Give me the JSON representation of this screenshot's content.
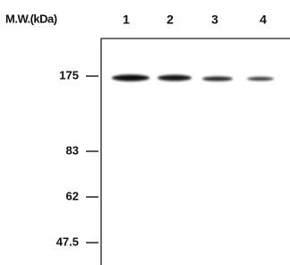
{
  "header": {
    "title": "M.W.(kDa)",
    "lanes": [
      "1",
      "2",
      "3",
      "4"
    ]
  },
  "markers": [
    "175",
    "83",
    "62",
    "47.5"
  ]
}
